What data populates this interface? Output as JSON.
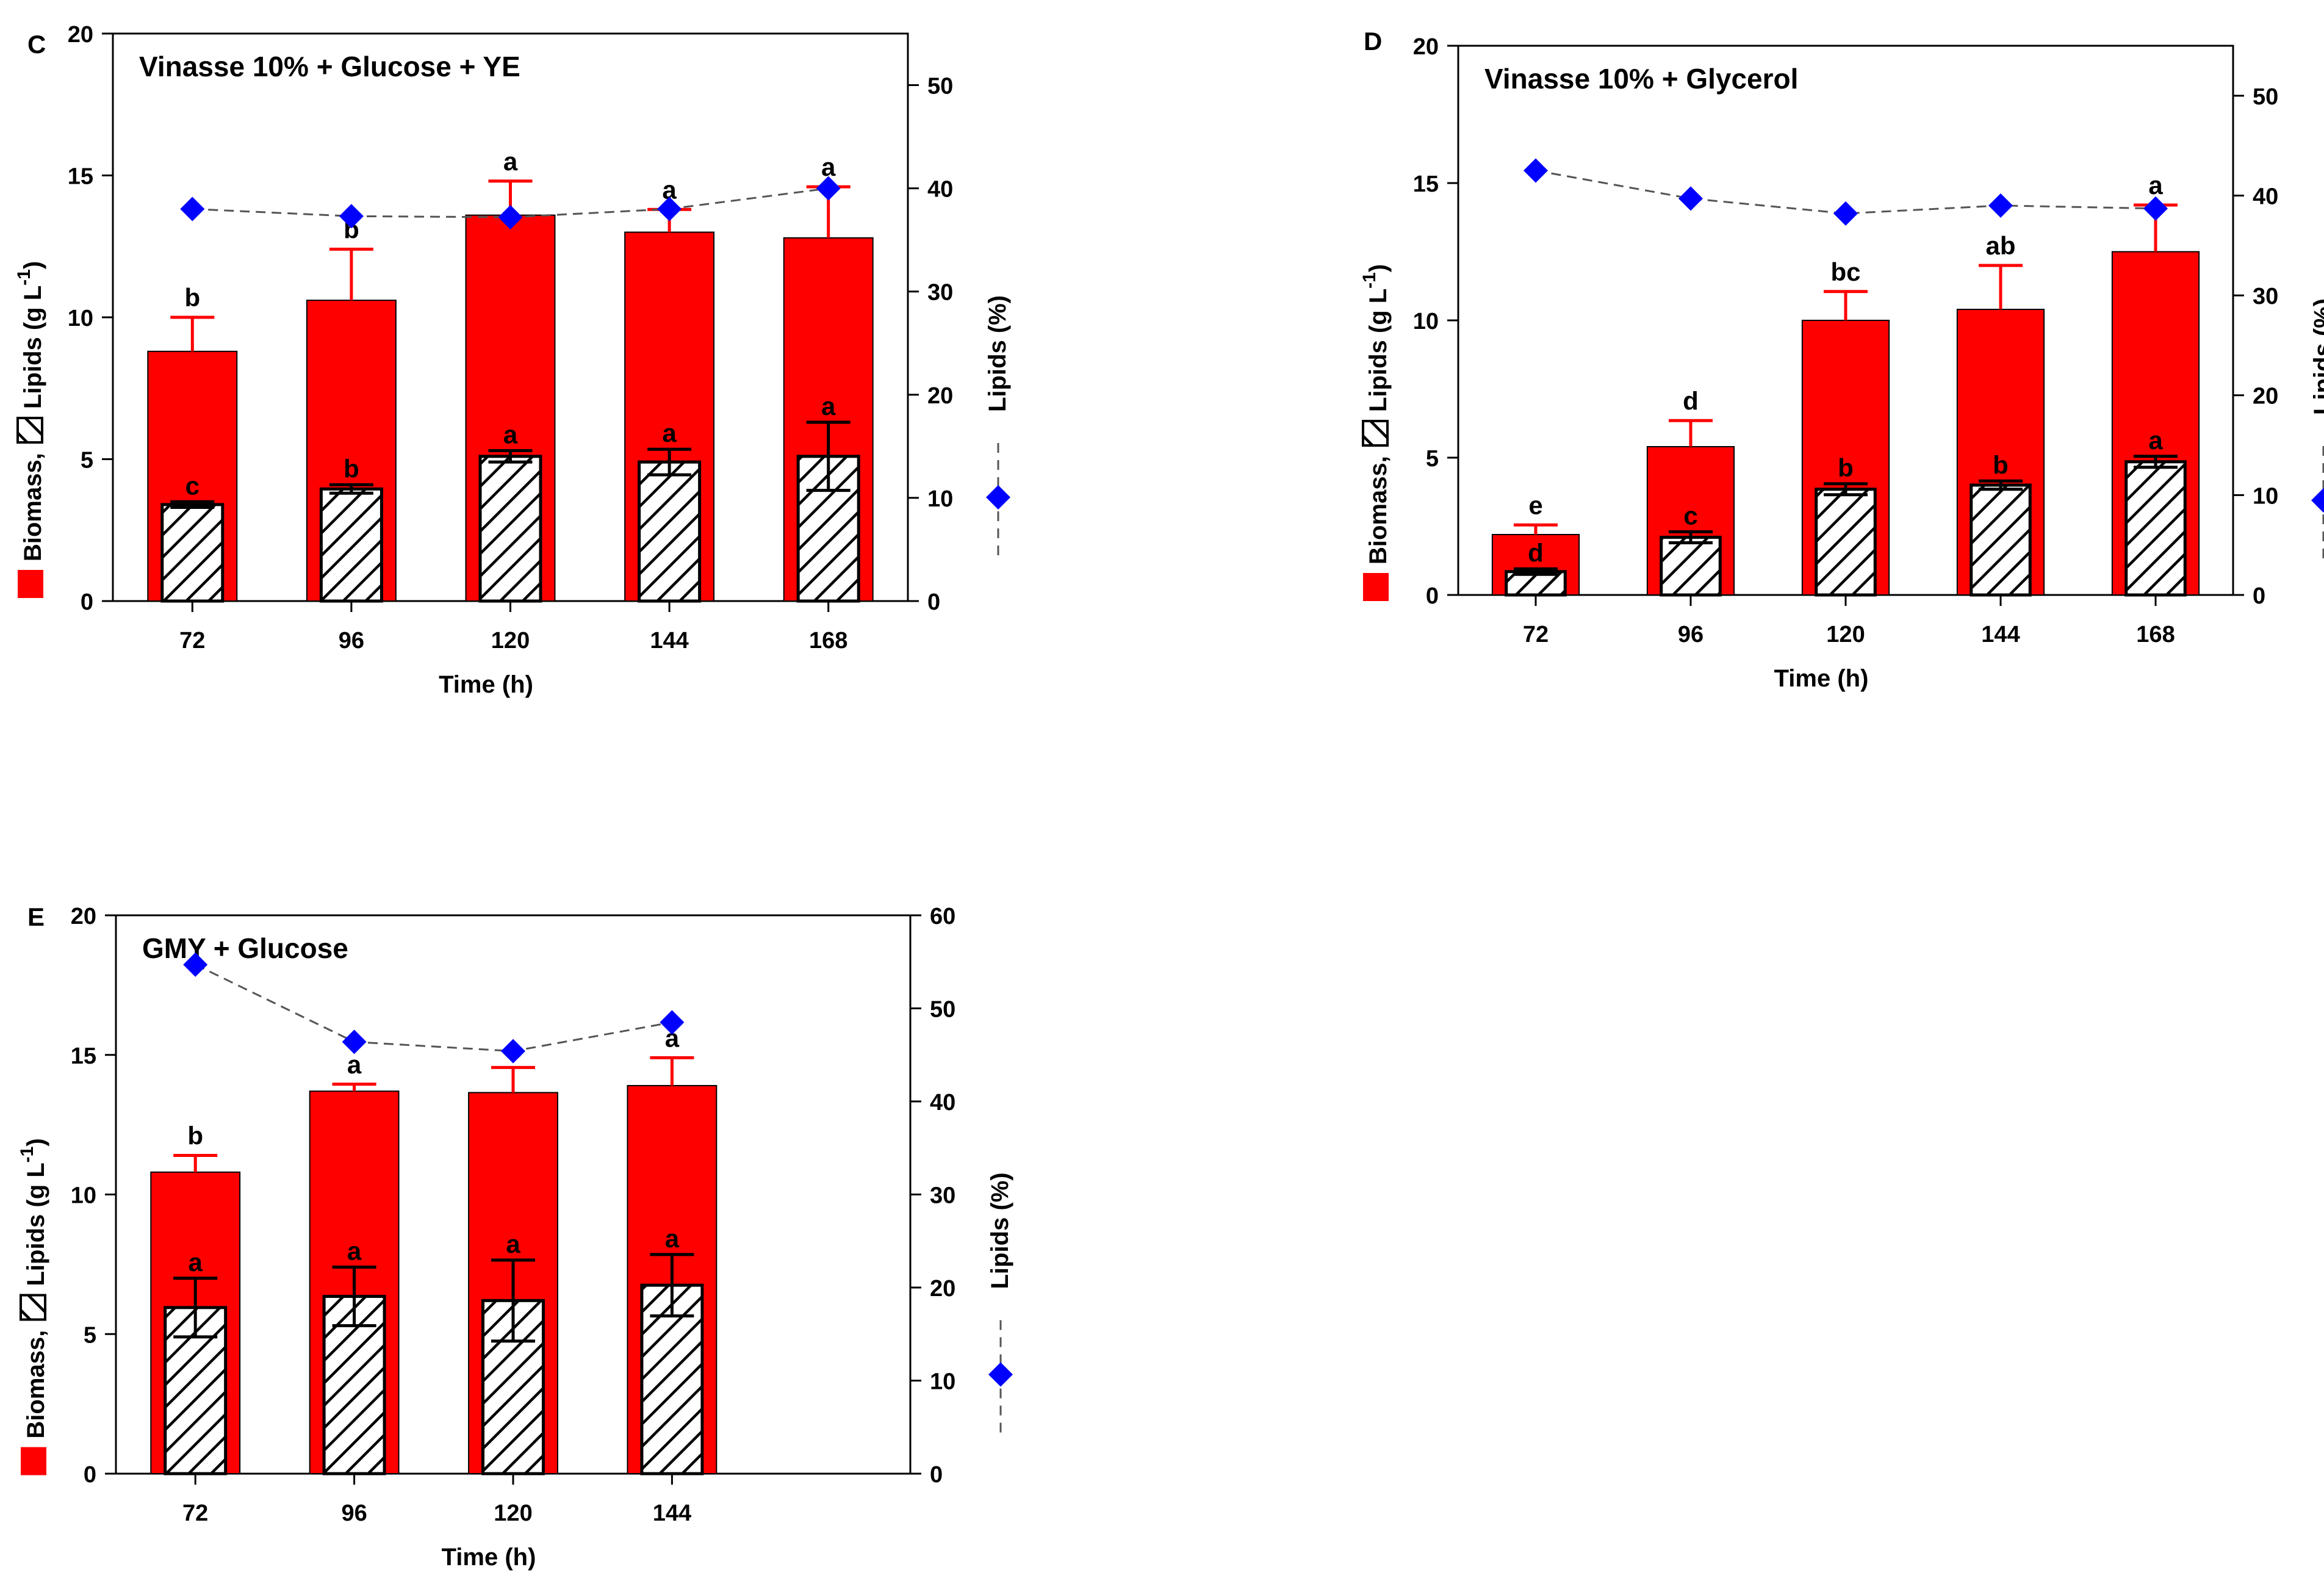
{
  "colors": {
    "biomass": "#ff0000",
    "lipid_fill": "#ffffff",
    "lipid_hatch": "#000000",
    "lipid_pct": "#0000ff",
    "axis": "#000000",
    "dashed_line": "#555555"
  },
  "chart_data": [
    {
      "type": "bar",
      "panel_label": "C",
      "title": "Vinasse 10% + Glucose + YE",
      "xlabel": "Time (h)",
      "ylabel_parts": [
        "Biomass,",
        "Lipids (g L",
        "-1",
        ")"
      ],
      "y2label": "Lipids (%)",
      "ylim": [
        0,
        20
      ],
      "y2lim": [
        0,
        55
      ],
      "yticks": [
        0,
        5,
        10,
        15,
        20
      ],
      "y2ticks": [
        0,
        10,
        20,
        30,
        40,
        50
      ],
      "n_slots": 5,
      "categories": [
        "72",
        "96",
        "120",
        "144",
        "168"
      ],
      "series": [
        {
          "name": "Biomass",
          "unit": "g L-1",
          "values": [
            8.8,
            10.6,
            13.6,
            13.0,
            12.8
          ],
          "errors": [
            1.2,
            1.8,
            1.2,
            0.8,
            1.8
          ],
          "letters": [
            "b",
            "b",
            "a",
            "a",
            "a"
          ]
        },
        {
          "name": "Lipids",
          "unit": "g L-1",
          "values": [
            3.4,
            3.95,
            5.1,
            4.9,
            5.1
          ],
          "errors": [
            0.1,
            0.15,
            0.2,
            0.45,
            1.2
          ],
          "letters": [
            "c",
            "b",
            "a",
            "a",
            "a"
          ]
        },
        {
          "name": "Lipids (%)",
          "axis": "right",
          "values": [
            38,
            37.3,
            37.2,
            38,
            40
          ]
        }
      ]
    },
    {
      "type": "bar",
      "panel_label": "D",
      "title": "Vinasse 10% + Glycerol",
      "xlabel": "Time (h)",
      "ylabel_parts": [
        "Biomass,",
        "Lipids (g L",
        "-1",
        ")"
      ],
      "y2label": "Lipids (%)",
      "ylim": [
        0,
        20
      ],
      "y2lim": [
        0,
        55
      ],
      "yticks": [
        0,
        5,
        10,
        15,
        20
      ],
      "y2ticks": [
        0,
        10,
        20,
        30,
        40,
        50
      ],
      "n_slots": 5,
      "categories": [
        "72",
        "96",
        "120",
        "144",
        "168"
      ],
      "series": [
        {
          "name": "Biomass",
          "unit": "g L-1",
          "values": [
            2.2,
            5.4,
            10.0,
            10.4,
            12.5
          ],
          "errors": [
            0.35,
            0.95,
            1.05,
            1.6,
            1.7
          ],
          "letters": [
            "e",
            "d",
            "bc",
            "ab",
            "a"
          ]
        },
        {
          "name": "Lipids",
          "unit": "g L-1",
          "values": [
            0.85,
            2.1,
            3.85,
            4.0,
            4.85
          ],
          "errors": [
            0.1,
            0.2,
            0.2,
            0.15,
            0.2
          ],
          "letters": [
            "d",
            "c",
            "b",
            "b",
            "a"
          ]
        },
        {
          "name": "Lipids (%)",
          "axis": "right",
          "values": [
            42.5,
            39.7,
            38.2,
            39.0,
            38.7
          ]
        }
      ]
    },
    {
      "type": "bar",
      "panel_label": "E",
      "title": "GMY + Glucose",
      "xlabel": "Time (h)",
      "ylabel_parts": [
        "Biomass,",
        "Lipids (g L",
        "-1",
        ")"
      ],
      "y2label": "Lipids (%)",
      "ylim": [
        0,
        20
      ],
      "y2lim": [
        0,
        60
      ],
      "yticks": [
        0,
        5,
        10,
        15,
        20
      ],
      "y2ticks": [
        0,
        10,
        20,
        30,
        40,
        50,
        60
      ],
      "n_slots": 5,
      "categories": [
        "72",
        "96",
        "120",
        "144"
      ],
      "series": [
        {
          "name": "Biomass",
          "unit": "g L-1",
          "values": [
            10.8,
            13.7,
            13.65,
            13.9
          ],
          "errors": [
            0.6,
            0.25,
            0.9,
            1.0
          ],
          "letters": [
            "b",
            "a",
            "a",
            "a"
          ]
        },
        {
          "name": "Lipids",
          "unit": "g L-1",
          "values": [
            5.95,
            6.35,
            6.2,
            6.75
          ],
          "errors": [
            1.05,
            1.05,
            1.45,
            1.1
          ],
          "letters": [
            "a",
            "a",
            "a",
            "a"
          ]
        },
        {
          "name": "Lipids (%)",
          "axis": "right",
          "values": [
            54.7,
            46.4,
            45.4,
            48.5
          ]
        }
      ]
    }
  ]
}
